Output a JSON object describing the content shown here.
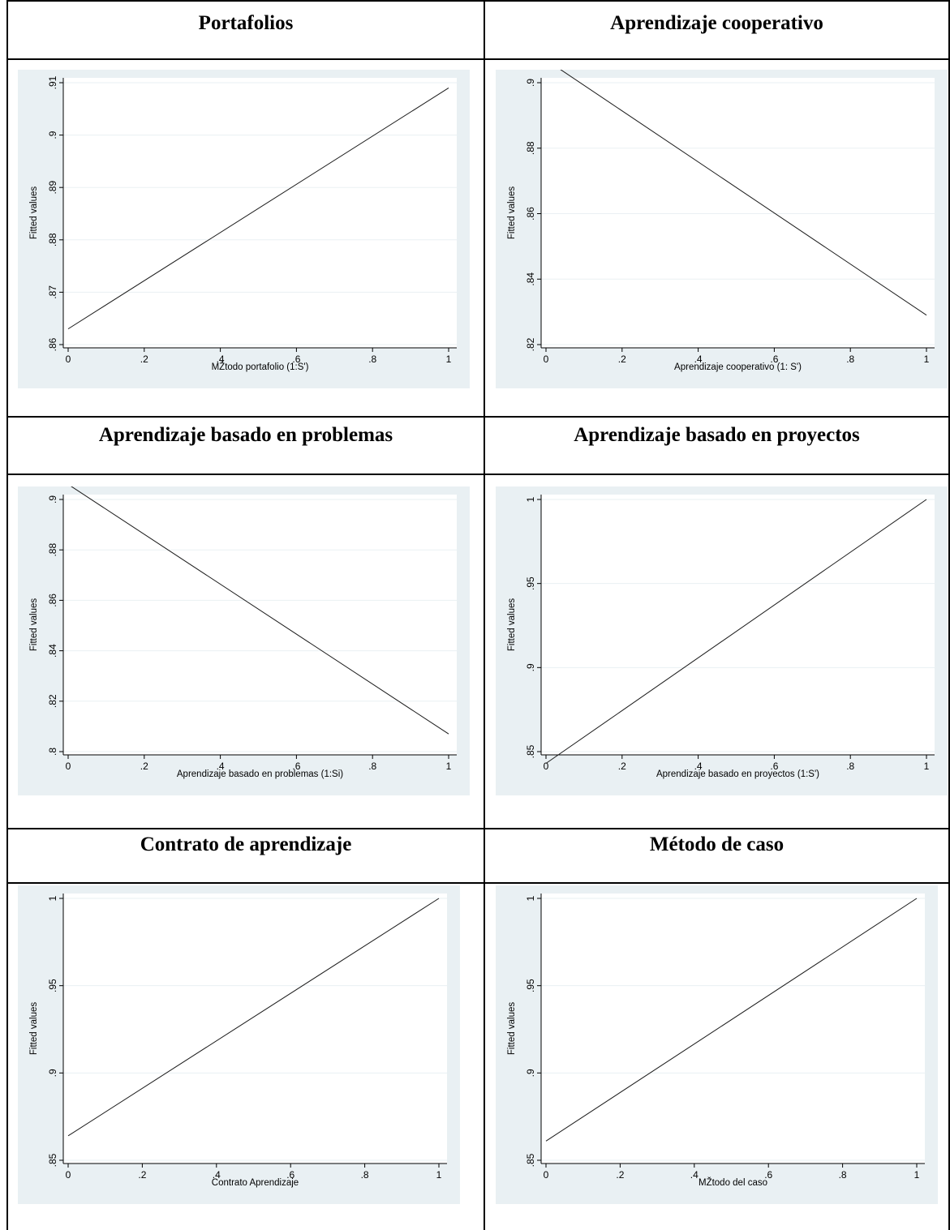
{
  "panels": [
    {
      "title": "Portafolios",
      "chart_data": {
        "type": "line",
        "xlabel": "MŽtodo portafolio (1:S')",
        "ylabel": "Fitted values",
        "xlim": [
          0,
          1
        ],
        "ylim": [
          0.86,
          0.91
        ],
        "x_ticks": [
          {
            "value": 0,
            "label": "0"
          },
          {
            "value": 0.2,
            "label": ".2"
          },
          {
            "value": 0.4,
            "label": ".4"
          },
          {
            "value": 0.6,
            "label": ".6"
          },
          {
            "value": 0.8,
            "label": ".8"
          },
          {
            "value": 1,
            "label": "1"
          }
        ],
        "y_ticks": [
          {
            "value": 0.86,
            "label": ".86"
          },
          {
            "value": 0.87,
            "label": ".87"
          },
          {
            "value": 0.88,
            "label": ".88"
          },
          {
            "value": 0.89,
            "label": ".89"
          },
          {
            "value": 0.9,
            "label": ".9"
          },
          {
            "value": 0.91,
            "label": ".91"
          }
        ],
        "series": [
          {
            "x": [
              0,
              1
            ],
            "y": [
              0.863,
              0.909
            ]
          }
        ]
      }
    },
    {
      "title": "Aprendizaje cooperativo",
      "chart_data": {
        "type": "line",
        "xlabel": "Aprendizaje cooperativo (1: S')",
        "ylabel": "Fitted values",
        "xlim": [
          0,
          1
        ],
        "ylim": [
          0.82,
          0.9
        ],
        "x_ticks": [
          {
            "value": 0,
            "label": "0"
          },
          {
            "value": 0.2,
            "label": ".2"
          },
          {
            "value": 0.4,
            "label": ".4"
          },
          {
            "value": 0.6,
            "label": ".6"
          },
          {
            "value": 0.8,
            "label": ".8"
          },
          {
            "value": 1,
            "label": "1"
          }
        ],
        "y_ticks": [
          {
            "value": 0.82,
            "label": ".82"
          },
          {
            "value": 0.84,
            "label": ".84"
          },
          {
            "value": 0.86,
            "label": ".86"
          },
          {
            "value": 0.88,
            "label": ".88"
          },
          {
            "value": 0.9,
            "label": ".9"
          }
        ],
        "series": [
          {
            "x": [
              0,
              1
            ],
            "y": [
              0.907,
              0.829
            ]
          }
        ]
      }
    },
    {
      "title": "Aprendizaje basado en problemas",
      "chart_data": {
        "type": "line",
        "xlabel": "Aprendizaje basado en problemas (1:Si)",
        "ylabel": "Fitted values",
        "xlim": [
          0,
          1
        ],
        "ylim": [
          0.8,
          0.9
        ],
        "x_ticks": [
          {
            "value": 0,
            "label": "0"
          },
          {
            "value": 0.2,
            "label": ".2"
          },
          {
            "value": 0.4,
            "label": ".4"
          },
          {
            "value": 0.6,
            "label": ".6"
          },
          {
            "value": 0.8,
            "label": ".8"
          },
          {
            "value": 1,
            "label": "1"
          }
        ],
        "y_ticks": [
          {
            "value": 0.8,
            "label": ".8"
          },
          {
            "value": 0.82,
            "label": ".82"
          },
          {
            "value": 0.84,
            "label": ".84"
          },
          {
            "value": 0.86,
            "label": ".86"
          },
          {
            "value": 0.88,
            "label": ".88"
          },
          {
            "value": 0.9,
            "label": ".9"
          }
        ],
        "series": [
          {
            "x": [
              0,
              1
            ],
            "y": [
              0.906,
              0.807
            ]
          }
        ]
      }
    },
    {
      "title": "Aprendizaje basado en proyectos",
      "chart_data": {
        "type": "line",
        "xlabel": "Aprendizaje basado en proyectos (1:S')",
        "ylabel": "Fitted values",
        "xlim": [
          0,
          1
        ],
        "ylim": [
          0.85,
          1
        ],
        "x_ticks": [
          {
            "value": 0,
            "label": "0"
          },
          {
            "value": 0.2,
            "label": ".2"
          },
          {
            "value": 0.4,
            "label": ".4"
          },
          {
            "value": 0.6,
            "label": ".6"
          },
          {
            "value": 0.8,
            "label": ".8"
          },
          {
            "value": 1,
            "label": "1"
          }
        ],
        "y_ticks": [
          {
            "value": 0.85,
            "label": ".85"
          },
          {
            "value": 0.9,
            "label": ".9"
          },
          {
            "value": 0.95,
            "label": ".95"
          },
          {
            "value": 1,
            "label": "1"
          }
        ],
        "series": [
          {
            "x": [
              0,
              1
            ],
            "y": [
              0.843,
              1.0
            ]
          }
        ]
      }
    },
    {
      "title": "Contrato de aprendizaje",
      "chart_data": {
        "type": "line",
        "xlabel": "Contrato Aprendizaje",
        "ylabel": "Fitted values",
        "xlim": [
          0,
          1
        ],
        "ylim": [
          0.85,
          1
        ],
        "x_ticks": [
          {
            "value": 0,
            "label": "0"
          },
          {
            "value": 0.2,
            "label": ".2"
          },
          {
            "value": 0.4,
            "label": ".4"
          },
          {
            "value": 0.6,
            "label": ".6"
          },
          {
            "value": 0.8,
            "label": ".8"
          },
          {
            "value": 1,
            "label": "1"
          }
        ],
        "y_ticks": [
          {
            "value": 0.85,
            "label": ".85"
          },
          {
            "value": 0.9,
            "label": ".9"
          },
          {
            "value": 0.95,
            "label": ".95"
          },
          {
            "value": 1,
            "label": "1"
          }
        ],
        "series": [
          {
            "x": [
              0,
              1
            ],
            "y": [
              0.864,
              1.0
            ]
          }
        ]
      }
    },
    {
      "title": "Método de caso",
      "chart_data": {
        "type": "line",
        "xlabel": "MŽtodo del caso",
        "ylabel": "Fitted values",
        "xlim": [
          0,
          1
        ],
        "ylim": [
          0.85,
          1
        ],
        "x_ticks": [
          {
            "value": 0,
            "label": "0"
          },
          {
            "value": 0.2,
            "label": ".2"
          },
          {
            "value": 0.4,
            "label": ".4"
          },
          {
            "value": 0.6,
            "label": ".6"
          },
          {
            "value": 0.8,
            "label": ".8"
          },
          {
            "value": 1,
            "label": "1"
          }
        ],
        "y_ticks": [
          {
            "value": 0.85,
            "label": ".85"
          },
          {
            "value": 0.9,
            "label": ".9"
          },
          {
            "value": 0.95,
            "label": ".95"
          },
          {
            "value": 1,
            "label": "1"
          }
        ],
        "series": [
          {
            "x": [
              0,
              1
            ],
            "y": [
              0.861,
              1.0
            ]
          }
        ]
      }
    }
  ]
}
